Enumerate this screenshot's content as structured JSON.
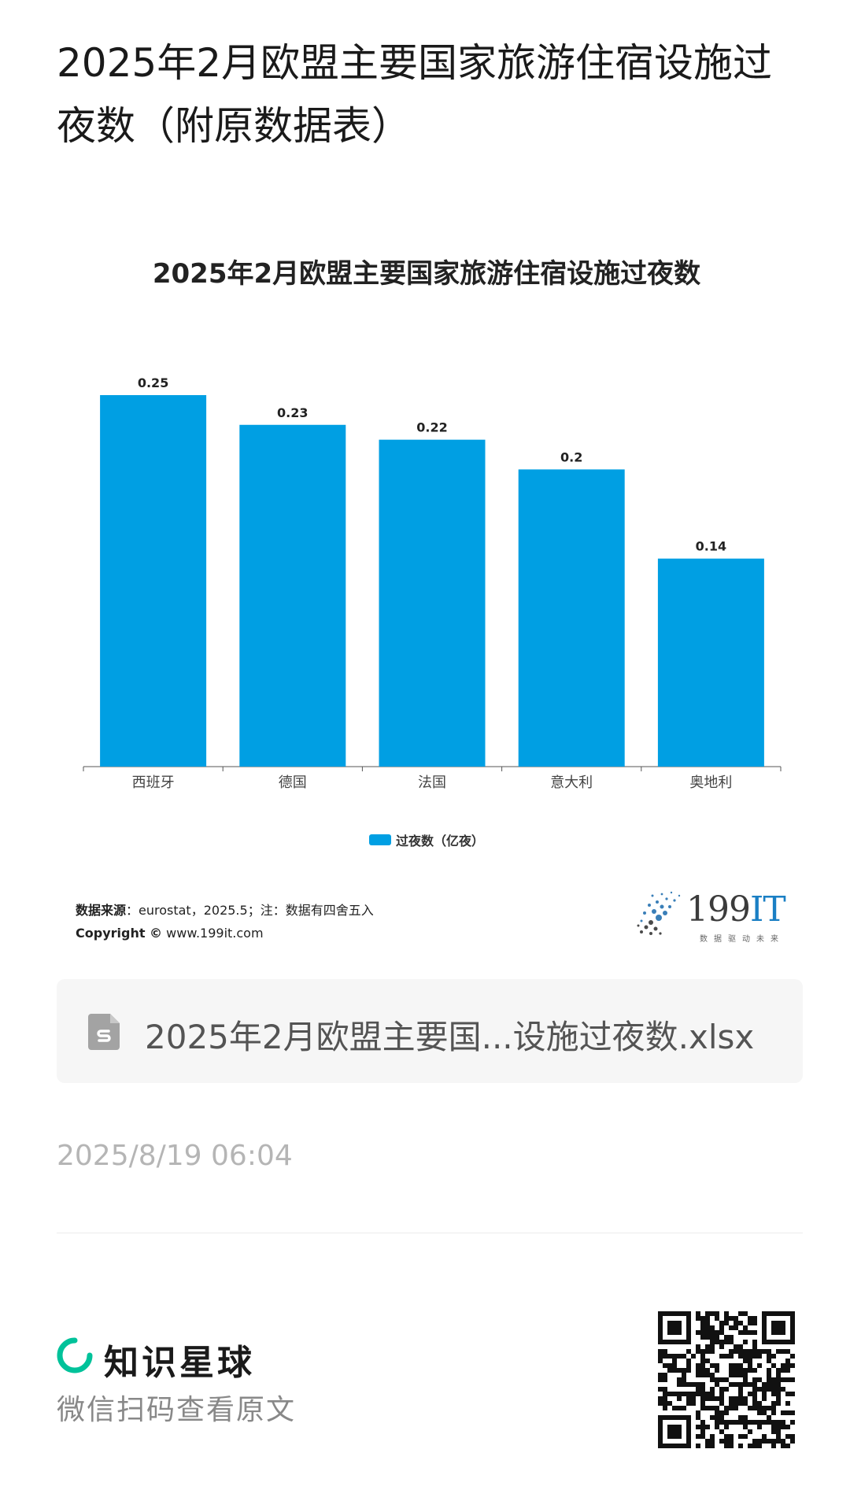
{
  "page": {
    "title": "2025年2月欧盟主要国家旅游住宿设施过夜数（附原数据表）"
  },
  "chart_data": {
    "type": "bar",
    "title": "2025年2月欧盟主要国家旅游住宿设施过夜数",
    "categories": [
      "西班牙",
      "德国",
      "法国",
      "意大利",
      "奥地利"
    ],
    "series": [
      {
        "name": "过夜数（亿夜）",
        "values": [
          0.25,
          0.23,
          0.22,
          0.2,
          0.14
        ],
        "color": "#009fe3"
      }
    ],
    "value_labels": [
      "0.25",
      "0.23",
      "0.22",
      "0.2",
      "0.14"
    ],
    "ylim": [
      0,
      0.25
    ],
    "grid": false,
    "legend_position": "bottom-center"
  },
  "source": {
    "label": "数据来源",
    "text": "：eurostat，2025.5；注：数据有四舍五入",
    "copyright_label": "Copyright ©",
    "copyright_url": "www.199it.com"
  },
  "logo": {
    "text_main": "199",
    "text_accent": "IT",
    "tagline": "数据驱动未来",
    "accent_color": "#1a7fc4"
  },
  "attachment": {
    "icon": "spreadsheet-file-icon",
    "filename": "2025年2月欧盟主要国...设施过夜数.xlsx"
  },
  "meta": {
    "timestamp": "2025/8/19 06:04"
  },
  "footer": {
    "brand_icon": "knowledge-planet-logo-icon",
    "brand_name": "知识星球",
    "brand_color": "#00c29a",
    "scan_hint": "微信扫码查看原文",
    "qr_icon": "qr-code-icon"
  }
}
